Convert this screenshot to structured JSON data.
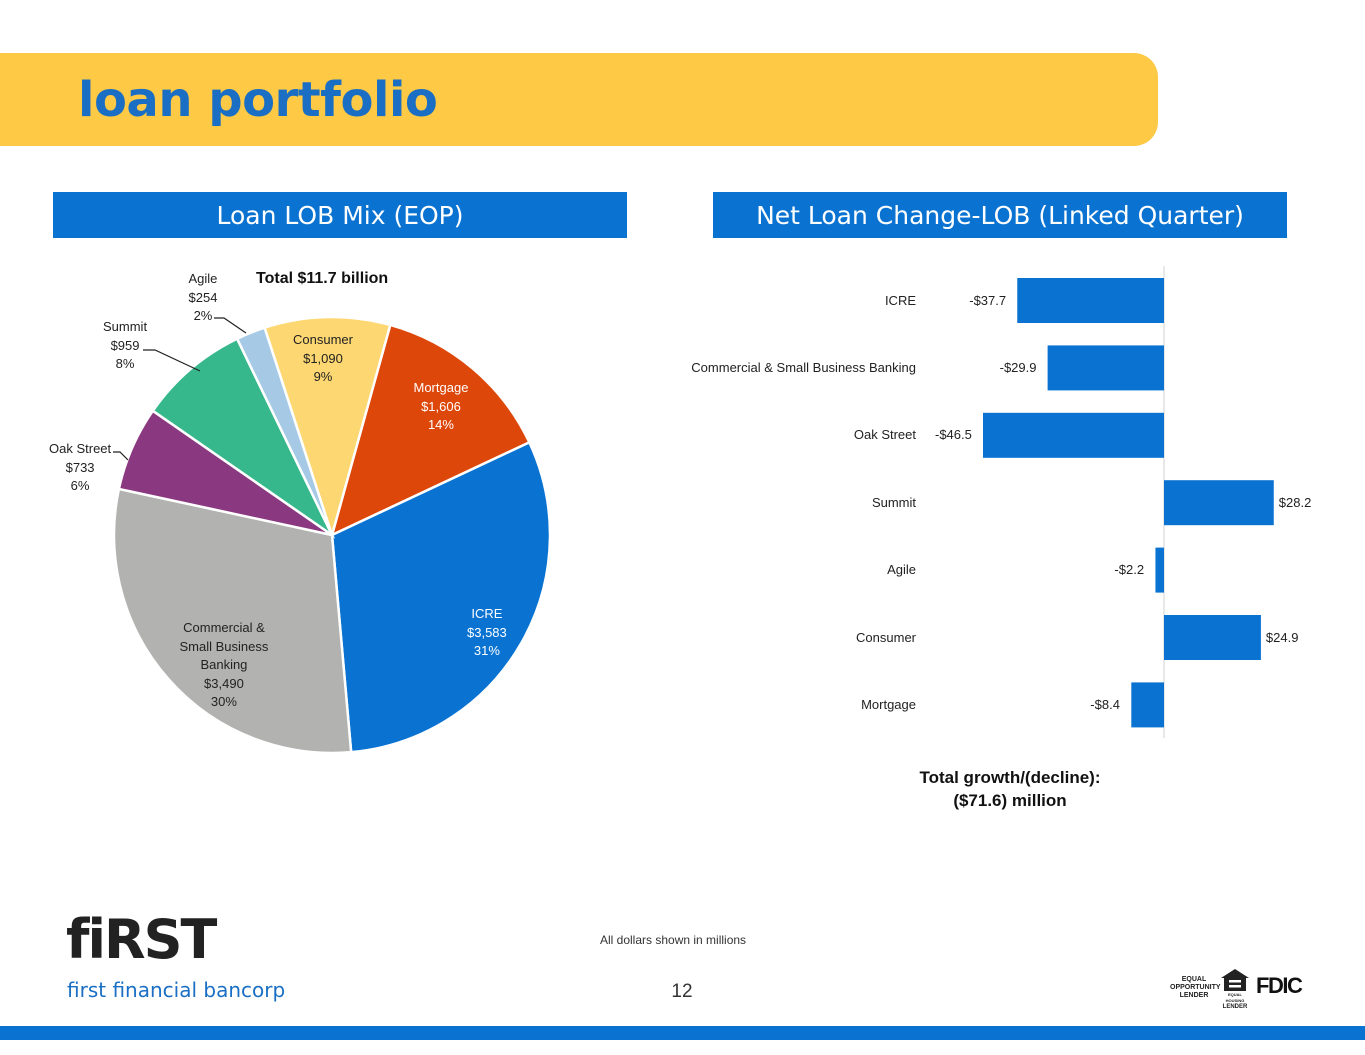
{
  "page": {
    "title": "loan portfolio",
    "footnote": "All dollars shown in millions",
    "page_number": "12"
  },
  "branding": {
    "logo_word": "fiRST",
    "logo_sub": "first financial bancorp",
    "badge_eol": [
      "EQUAL",
      "OPPORTUNITY",
      "LENDER"
    ],
    "badge_ehl": [
      "EQUAL HOUSING",
      "LENDER"
    ],
    "badge_fdic": "FDIC"
  },
  "colors": {
    "banner": "#FEC945",
    "title": "#1A6FC4",
    "header": "#0A73D2",
    "bar": "#0A73D2"
  },
  "chart_data": [
    {
      "type": "pie",
      "header": "Loan LOB Mix (EOP)",
      "total_label": "Total $11.7 billion",
      "slices": [
        {
          "label": [
            "Mortgage"
          ],
          "value": 1606,
          "value_label": "$1,606",
          "pct": "14%",
          "color": "#DD4709",
          "label_color": "#ffffff"
        },
        {
          "label": [
            "ICRE"
          ],
          "value": 3583,
          "value_label": "$3,583",
          "pct": "31%",
          "color": "#0A73D2",
          "label_color": "#ffffff"
        },
        {
          "label": [
            "Commercial &",
            "Small Business",
            "Banking"
          ],
          "value": 3490,
          "value_label": "$3,490",
          "pct": "30%",
          "color": "#B2B3B1",
          "label_color": "#222222"
        },
        {
          "label": [
            "Oak Street"
          ],
          "value": 733,
          "value_label": "$733",
          "pct": "6%",
          "color": "#8A387F",
          "label_color": "#222222"
        },
        {
          "label": [
            "Summit"
          ],
          "value": 959,
          "value_label": "$959",
          "pct": "8%",
          "color": "#36B88C",
          "label_color": "#222222"
        },
        {
          "label": [
            "Agile"
          ],
          "value": 254,
          "value_label": "$254",
          "pct": "2%",
          "color": "#A6CAE6",
          "label_color": "#222222"
        },
        {
          "label": [
            "Consumer"
          ],
          "value": 1090,
          "value_label": "$1,090",
          "pct": "9%",
          "color": "#FDD771",
          "label_color": "#222222"
        }
      ]
    },
    {
      "type": "bar",
      "orientation": "horizontal",
      "header": "Net Loan Change-LOB (Linked Quarter)",
      "categories": [
        "ICRE",
        "Commercial & Small Business Banking",
        "Oak Street",
        "Summit",
        "Agile",
        "Consumer",
        "Mortgage"
      ],
      "values": [
        -37.7,
        -29.9,
        -46.5,
        28.2,
        -2.2,
        24.9,
        -8.4
      ],
      "value_labels": [
        "-$37.7",
        "-$29.9",
        "-$46.5",
        "$28.2",
        "-$2.2",
        "$24.9",
        "-$8.4"
      ],
      "xlim": [
        -46.5,
        28.2
      ],
      "total_label": [
        "Total growth/(decline):",
        "($71.6) million"
      ]
    }
  ]
}
